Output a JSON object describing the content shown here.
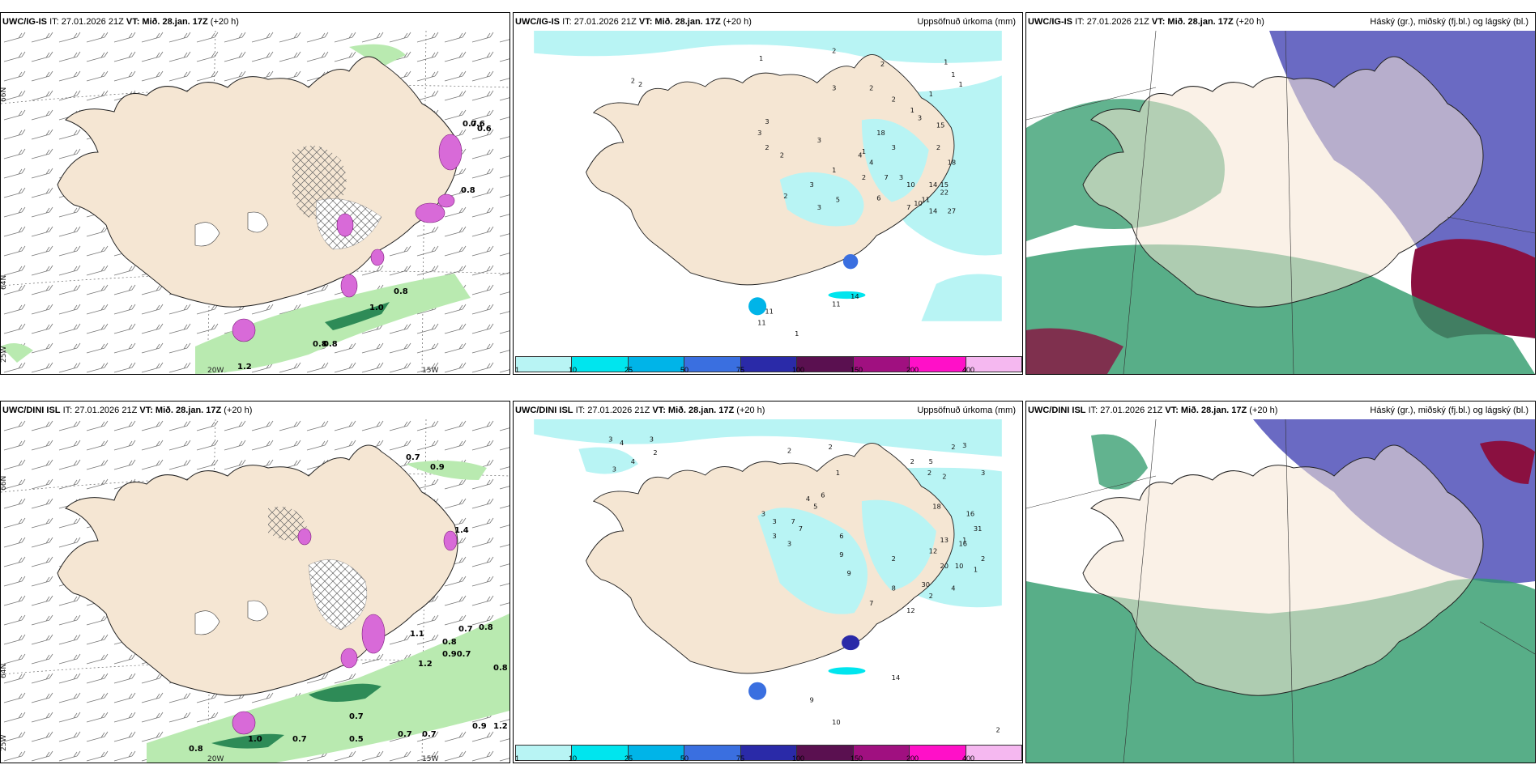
{
  "panels": [
    {
      "model": "UWC/IG-IS",
      "it": "IT: 27.01.2026 21Z",
      "vt_label": "VT:",
      "vt": "Mið. 28.jan. 17Z",
      "lead": "(+20 h)",
      "title_right": "",
      "axis": {
        "lat1": "66N",
        "lat2": "64N",
        "lon1": "20W",
        "lon2": "15W",
        "lon0": "25W"
      },
      "labels": [
        "0.7",
        "0.6",
        "0.6",
        "0.8",
        "1.0",
        "0.8",
        "0.8",
        "0.8",
        "1.2"
      ]
    },
    {
      "model": "UWC/IG-IS",
      "it": "IT: 27.01.2026 21Z",
      "vt_label": "VT:",
      "vt": "Mið. 28.jan. 17Z",
      "lead": "(+20 h)",
      "title_right": "Uppsöfnuð úrkoma (mm)",
      "numbers": [
        "1",
        "2",
        "2",
        "2",
        "1",
        "1",
        "1",
        "2",
        "2",
        "3",
        "2",
        "1",
        "1",
        "3",
        "3",
        "2",
        "2",
        "3",
        "18",
        "15",
        "1",
        "4",
        "3",
        "3",
        "3",
        "2",
        "18",
        "10",
        "14",
        "7",
        "2",
        "7",
        "11",
        "15",
        "6",
        "10",
        "22",
        "14",
        "27",
        "3",
        "5",
        "2",
        "3",
        "1",
        "4",
        "14",
        "11",
        "11",
        "11",
        "1"
      ],
      "colorbar": {
        "labels": [
          "1",
          "10",
          "25",
          "50",
          "75",
          "100",
          "150",
          "200",
          "400"
        ],
        "colors": [
          "#b8f4f4",
          "#00e5ee",
          "#00b4e8",
          "#3a6fe0",
          "#2a2aa8",
          "#5a1050",
          "#a01080",
          "#ff10c8",
          "#f5b8f0"
        ]
      }
    },
    {
      "model": "UWC/IG-IS",
      "it": "IT: 27.01.2026 21Z",
      "vt_label": "VT:",
      "vt": "Mið. 28.jan. 17Z",
      "lead": "(+20 h)",
      "title_right": "Háský (gr.), miðský (fj.bl.) og lágský (bl.)"
    },
    {
      "model": "UWC/DINI ISL",
      "it": "IT: 27.01.2026 21Z",
      "vt_label": "VT:",
      "vt": "Mið. 28.jan. 17Z",
      "lead": "(+20 h)",
      "title_right": "",
      "axis": {
        "lat1": "66N",
        "lat2": "64N",
        "lon1": "20W",
        "lon2": "15W",
        "lon0": "25W"
      },
      "labels": [
        "0.7",
        "0.9",
        "1.4",
        "1.1",
        "0.7",
        "0.8",
        "0.90.7",
        "1.2",
        "0.8",
        "0.8",
        "0.7",
        "1.0",
        "0.7",
        "0.5",
        "0.7",
        "0.7",
        "0.9",
        "1.2",
        "0.8"
      ]
    },
    {
      "model": "UWC/DINI ISL",
      "it": "IT: 27.01.2026 21Z",
      "vt_label": "VT:",
      "vt": "Mið. 28.jan. 17Z",
      "lead": "(+20 h)",
      "title_right": "Uppsöfnuð úrkoma (mm)",
      "numbers": [
        "3",
        "4",
        "3",
        "2",
        "4",
        "3",
        "2",
        "2",
        "2",
        "3",
        "2",
        "2",
        "2",
        "3",
        "5",
        "1",
        "4",
        "6",
        "5",
        "18",
        "3",
        "3",
        "7",
        "7",
        "16",
        "31",
        "1",
        "3",
        "3",
        "6",
        "9",
        "13",
        "16",
        "2",
        "12",
        "20",
        "10",
        "2",
        "1",
        "9",
        "8",
        "30",
        "2",
        "4",
        "7",
        "12",
        "14",
        "9",
        "10",
        "2"
      ],
      "colorbar": {
        "labels": [
          "1",
          "10",
          "25",
          "50",
          "75",
          "100",
          "150",
          "200",
          "400"
        ],
        "colors": [
          "#b8f4f4",
          "#00e5ee",
          "#00b4e8",
          "#3a6fe0",
          "#2a2aa8",
          "#5a1050",
          "#a01080",
          "#ff10c8",
          "#f5b8f0"
        ]
      }
    },
    {
      "model": "UWC/DINI ISL",
      "it": "IT: 27.01.2026 21Z",
      "vt_label": "VT:",
      "vt": "Mið. 28.jan. 17Z",
      "lead": "(+20 h)",
      "title_right": "Háský (gr.), miðský (fj.bl.) og lágský (bl.)"
    }
  ],
  "colors": {
    "land": "#f5e6d3",
    "coast": "#222222",
    "green": "#b9eab0",
    "dkgreen": "#2e8b57",
    "magenta": "#d86ad8",
    "cyan": "#b8f4f4",
    "cloud_high": "#2e9a6a",
    "cloud_mid": "#5050b8",
    "cloud_low": "#8a1040"
  }
}
